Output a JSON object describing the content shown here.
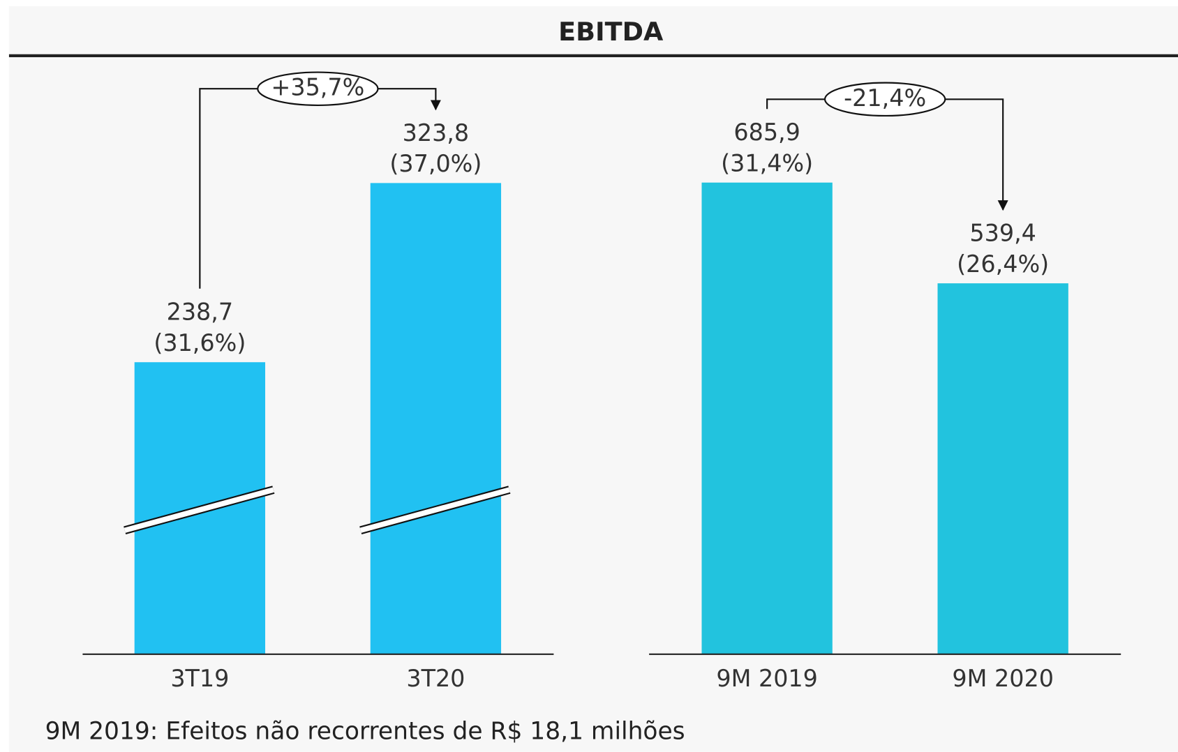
{
  "title": "EBITDA",
  "chart_data": [
    {
      "type": "bar",
      "categories": [
        "3T19",
        "3T20"
      ],
      "values": [
        238.7,
        323.8
      ],
      "value_labels": [
        "238,7",
        "323,8"
      ],
      "margins": [
        31.6,
        37.0
      ],
      "margin_labels": [
        "(31,6%)",
        "(37,0%)"
      ],
      "color": "#21c1f2",
      "ylim": [
        100,
        375
      ],
      "broken_axis": true,
      "change": {
        "value": 35.7,
        "label": "+35,7%"
      }
    },
    {
      "type": "bar",
      "categories": [
        "9M 2019",
        "9M 2020"
      ],
      "values": [
        685.9,
        539.4
      ],
      "value_labels": [
        "685,9",
        "539,4"
      ],
      "margins": [
        31.4,
        26.4
      ],
      "margin_labels": [
        "(31,4%)",
        "(26,4%)"
      ],
      "color": "#22c3de",
      "ylim": [
        0,
        842
      ],
      "broken_axis": false,
      "change": {
        "value": -21.4,
        "label": "-21,4%"
      }
    }
  ],
  "footnote": "9M 2019: Efeitos não recorrentes de R$ 18,1 milhões"
}
